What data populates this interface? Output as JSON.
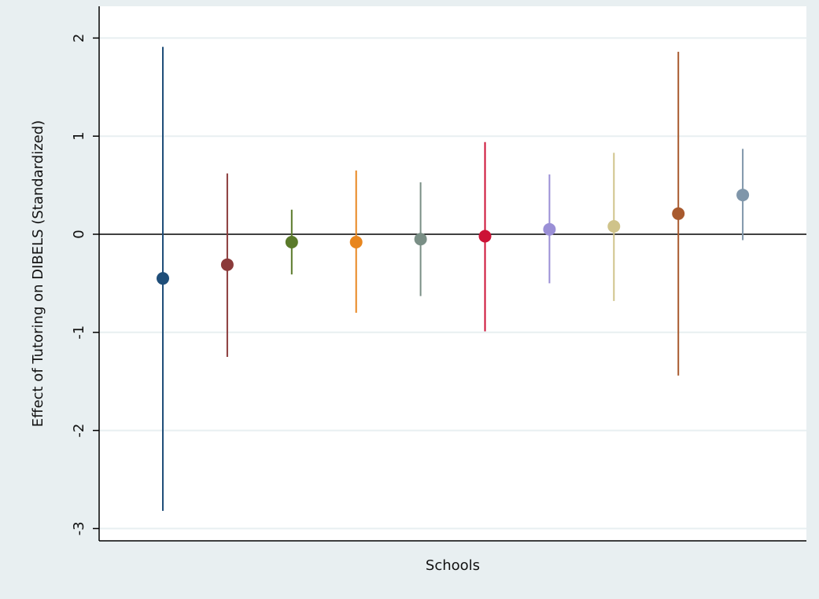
{
  "chart_data": {
    "type": "scatter",
    "title": "",
    "xlabel": "Schools",
    "ylabel": "Effect of Tutoring on DIBELS (Standardized)",
    "ylim": [
      -3.1,
      2.2
    ],
    "yticks": [
      -3,
      -2,
      -1,
      0,
      1,
      2
    ],
    "ytick_labels": [
      "-3",
      "-2",
      "-1",
      "0",
      "1",
      "2"
    ],
    "grid": true,
    "reference_line": 0,
    "legend": "none",
    "points": [
      {
        "x": 1,
        "y": -0.45,
        "low": -2.82,
        "high": 1.91,
        "color": "#1f4e79"
      },
      {
        "x": 2,
        "y": -0.31,
        "low": -1.25,
        "high": 0.62,
        "color": "#8b3a3a"
      },
      {
        "x": 3,
        "y": -0.08,
        "low": -0.41,
        "high": 0.25,
        "color": "#5a7a2a"
      },
      {
        "x": 4,
        "y": -0.08,
        "low": -0.8,
        "high": 0.65,
        "color": "#e8861e"
      },
      {
        "x": 5,
        "y": -0.05,
        "low": -0.63,
        "high": 0.53,
        "color": "#7a8f86"
      },
      {
        "x": 6,
        "y": -0.02,
        "low": -0.99,
        "high": 0.94,
        "color": "#cc1236"
      },
      {
        "x": 7,
        "y": 0.05,
        "low": -0.5,
        "high": 0.61,
        "color": "#9a8fd6"
      },
      {
        "x": 8,
        "y": 0.08,
        "low": -0.68,
        "high": 0.83,
        "color": "#cfc38a"
      },
      {
        "x": 9,
        "y": 0.21,
        "low": -1.44,
        "high": 1.86,
        "color": "#a85a2e"
      },
      {
        "x": 10,
        "y": 0.4,
        "low": -0.06,
        "high": 0.87,
        "color": "#7f96aa"
      }
    ],
    "colors": {
      "outer_background": "#e8eff1",
      "plot_background": "#ffffff",
      "grid": "#e8eff1",
      "axis": "#000000"
    }
  }
}
